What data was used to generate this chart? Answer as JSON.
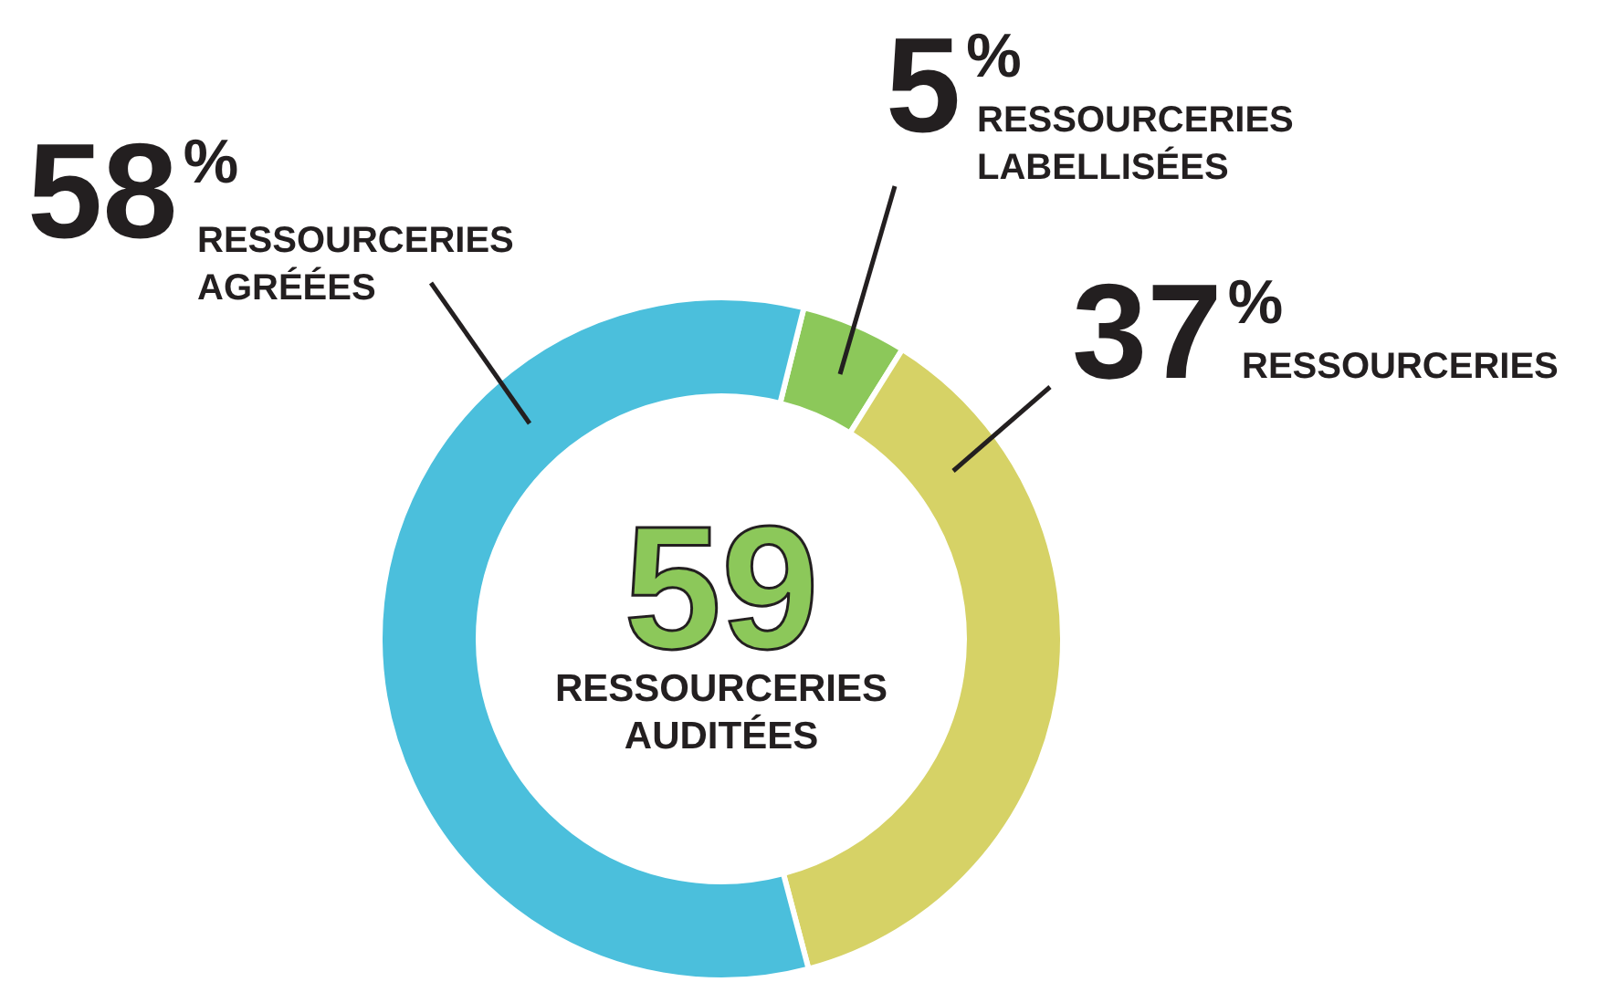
{
  "chart_data": {
    "type": "donut",
    "categories": [
      "RESSOURCERIES LABELLISÉES",
      "RESSOURCERIES",
      "RESSOURCERIES AGRÉÉES"
    ],
    "values": [
      5,
      37,
      58
    ],
    "colors": [
      "#8cc85a",
      "#d6d266",
      "#4bbfdc"
    ],
    "value_labels": [
      "5$^{%}$",
      "37$^{%}$",
      "58$^{%}$"
    ],
    "annotations": [
      "59",
      "RESSOURCERIES AUDITÉES"
    ]
  }
}
